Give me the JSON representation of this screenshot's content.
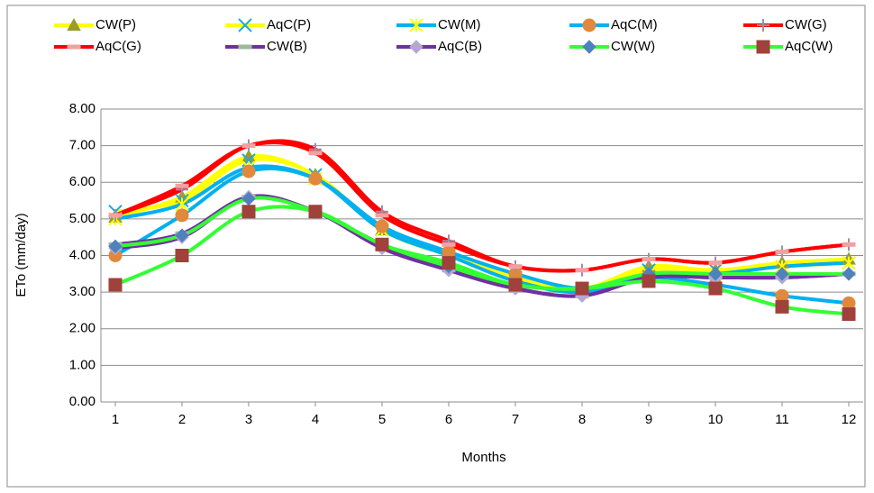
{
  "chart_data": {
    "type": "line",
    "x_label": "Months",
    "y_label": "ETo (mm/day)",
    "categories": [
      "1",
      "2",
      "3",
      "4",
      "5",
      "6",
      "7",
      "8",
      "9",
      "10",
      "11",
      "12"
    ],
    "ylim": [
      0,
      8
    ],
    "yticks": [
      {
        "value": 0,
        "label": "0.00"
      },
      {
        "value": 1,
        "label": "1.00"
      },
      {
        "value": 2,
        "label": "2.00"
      },
      {
        "value": 3,
        "label": "3.00"
      },
      {
        "value": 4,
        "label": "4.00"
      },
      {
        "value": 5,
        "label": "5.00"
      },
      {
        "value": 6,
        "label": "6.00"
      },
      {
        "value": 7,
        "label": "7.00"
      },
      {
        "value": 8,
        "label": "8.00"
      }
    ],
    "grid": true,
    "smooth": true,
    "legend": "top",
    "series": [
      {
        "name": "CW(P)",
        "color": "#ffff00",
        "marker": "triangle",
        "marker_color": "#9b9b2e",
        "values": [
          5.05,
          5.6,
          6.7,
          6.2,
          4.7,
          4.1,
          3.4,
          3.1,
          3.7,
          3.6,
          3.8,
          3.9
        ]
      },
      {
        "name": "AqC(P)",
        "color": "#ffff00",
        "marker": "x",
        "marker_color": "#1fa9e0",
        "values": [
          5.2,
          5.5,
          6.6,
          6.2,
          4.7,
          4.0,
          3.4,
          3.1,
          3.6,
          3.6,
          3.7,
          3.8
        ]
      },
      {
        "name": "CW(M)",
        "color": "#00b0f0",
        "marker": "star",
        "marker_color": "#ffff00",
        "values": [
          5.0,
          5.4,
          6.4,
          6.1,
          4.7,
          4.0,
          3.3,
          3.0,
          3.5,
          3.5,
          3.7,
          3.8
        ]
      },
      {
        "name": "AqC(M)",
        "color": "#00b0f0",
        "marker": "circle",
        "marker_color": "#e0893c",
        "values": [
          4.0,
          5.1,
          6.3,
          6.1,
          4.8,
          4.1,
          3.5,
          3.1,
          3.4,
          3.2,
          2.9,
          2.7
        ]
      },
      {
        "name": "CW(G)",
        "color": "#ff0000",
        "marker": "plus",
        "marker_color": "#9a8fa8",
        "values": [
          5.1,
          5.8,
          7.0,
          6.9,
          5.2,
          4.4,
          3.7,
          3.6,
          3.9,
          3.8,
          4.1,
          4.3
        ]
      },
      {
        "name": "AqC(G)",
        "color": "#ff0000",
        "marker": "dash",
        "marker_color": "#f4a0a0",
        "values": [
          5.1,
          5.9,
          7.0,
          6.8,
          5.1,
          4.3,
          3.7,
          3.6,
          3.9,
          3.8,
          4.1,
          4.3
        ]
      },
      {
        "name": "CW(B)",
        "color": "#7030a0",
        "marker": "dash",
        "marker_color": "#9bbb9b",
        "values": [
          4.3,
          4.6,
          5.6,
          5.2,
          4.3,
          3.6,
          3.1,
          2.9,
          3.4,
          3.4,
          3.4,
          3.5
        ]
      },
      {
        "name": "AqC(B)",
        "color": "#7030a0",
        "marker": "diamond",
        "marker_color": "#b4a7d6",
        "values": [
          4.2,
          4.5,
          5.6,
          5.2,
          4.2,
          3.6,
          3.1,
          2.9,
          3.4,
          3.4,
          3.4,
          3.5
        ]
      },
      {
        "name": "CW(W)",
        "color": "#33ff33",
        "marker": "diamond",
        "marker_color": "#4f81bd",
        "values": [
          4.25,
          4.55,
          5.55,
          5.2,
          4.3,
          3.7,
          3.2,
          3.1,
          3.5,
          3.5,
          3.5,
          3.5
        ]
      },
      {
        "name": "AqC(W)",
        "color": "#33ff33",
        "marker": "square",
        "marker_color": "#a0413b",
        "values": [
          3.2,
          4.0,
          5.2,
          5.2,
          4.3,
          3.8,
          3.2,
          3.1,
          3.3,
          3.1,
          2.6,
          2.4
        ]
      }
    ]
  }
}
